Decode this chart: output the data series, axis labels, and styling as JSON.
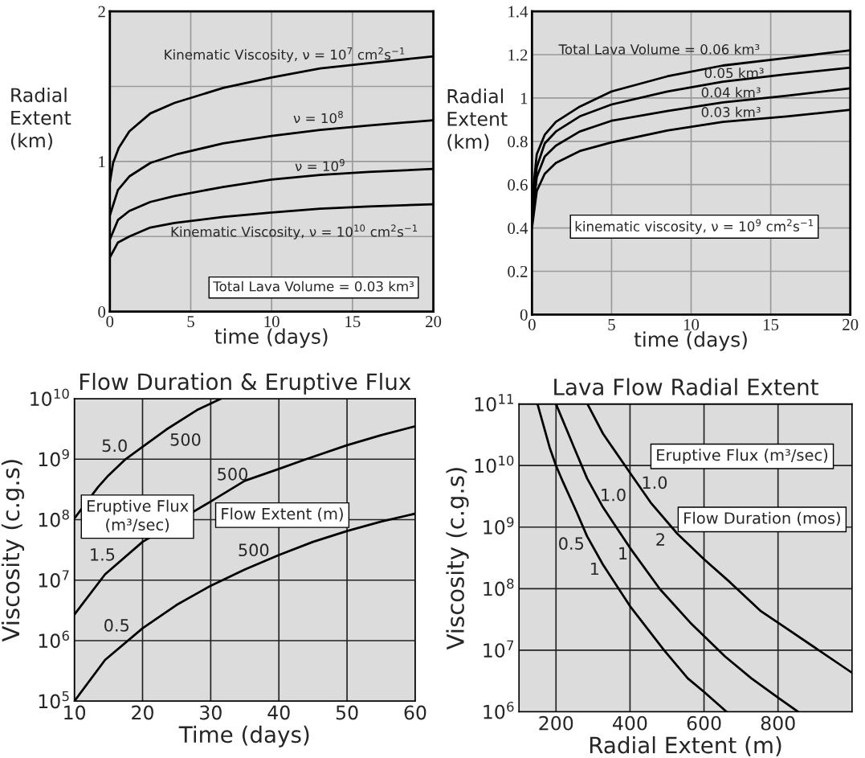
{
  "chart_data": [
    {
      "type": "line",
      "xlabel": "time (days)",
      "ylabel": "Radial\nExtent\n(km)",
      "xlim": [
        0,
        20
      ],
      "ylim": [
        0,
        2
      ],
      "xticks": [
        0,
        5,
        10,
        15,
        20
      ],
      "yticks": [
        0,
        {
          "value": 0.5,
          "label": null
        },
        1,
        {
          "value": 1.5,
          "label": null
        },
        2
      ],
      "grid": true,
      "series": [
        {
          "color": "#000000",
          "x": [
            0,
            0.2,
            0.55,
            1.2,
            2.5,
            4,
            7,
            10,
            13,
            16,
            20
          ],
          "values": [
            0.86,
            0.99,
            1.09,
            1.2,
            1.32,
            1.39,
            1.49,
            1.56,
            1.62,
            1.655,
            1.7
          ]
        },
        {
          "color": "#000000",
          "x": [
            0,
            0.5,
            1.2,
            2.5,
            4.2,
            7,
            10,
            13,
            16,
            20
          ],
          "values": [
            0.64,
            0.81,
            0.9,
            0.99,
            1.05,
            1.12,
            1.17,
            1.21,
            1.24,
            1.275
          ]
        },
        {
          "color": "#000000",
          "x": [
            0,
            0.5,
            1.2,
            2.5,
            4,
            7,
            10,
            13,
            16,
            20
          ],
          "values": [
            0.48,
            0.61,
            0.67,
            0.73,
            0.77,
            0.83,
            0.88,
            0.91,
            0.93,
            0.95
          ]
        },
        {
          "color": "#000000",
          "x": [
            0,
            0.5,
            1.2,
            2.5,
            4,
            7,
            10,
            13,
            16,
            20
          ],
          "values": [
            0.36,
            0.46,
            0.5,
            0.56,
            0.59,
            0.63,
            0.66,
            0.685,
            0.7,
            0.715
          ]
        }
      ],
      "annotations": [
        "Kinematic Viscosity, ν = 10$^{7}$ cm$^{2}$s$^{−1}$",
        "ν = 10$^{8}$",
        "ν = 10$^{9}$",
        "Kinematic Viscosity, ν = 10$^{10}$ cm$^{2}$s$^{−1}$",
        "Total Lava Volume = 0.03 km³"
      ]
    },
    {
      "type": "line",
      "xlabel": "time (days)",
      "ylabel": "Radial\nExtent\n(km)",
      "xlim": [
        0,
        20
      ],
      "ylim": [
        0,
        1.4
      ],
      "xticks": [
        0,
        5,
        10,
        15,
        20
      ],
      "yticks": [
        0,
        0.2,
        0.4,
        0.6,
        0.8,
        1,
        1.2,
        1.4
      ],
      "grid": true,
      "series": [
        {
          "color": "#000000",
          "x": [
            0,
            0.3,
            0.8,
            1.5,
            3,
            5,
            8.5,
            12,
            16,
            20
          ],
          "values": [
            0.52,
            0.74,
            0.83,
            0.89,
            0.96,
            1.03,
            1.1,
            1.15,
            1.185,
            1.22
          ]
        },
        {
          "color": "#000000",
          "x": [
            0,
            0.3,
            0.8,
            1.5,
            3,
            5,
            8.5,
            12,
            16,
            20
          ],
          "values": [
            0.48,
            0.68,
            0.79,
            0.845,
            0.915,
            0.97,
            1.03,
            1.075,
            1.11,
            1.14
          ]
        },
        {
          "color": "#000000",
          "x": [
            0,
            0.3,
            0.8,
            1.5,
            3,
            5,
            8.5,
            12,
            16,
            20
          ],
          "values": [
            0.44,
            0.635,
            0.73,
            0.78,
            0.845,
            0.895,
            0.94,
            0.98,
            1.01,
            1.045
          ]
        },
        {
          "color": "#000000",
          "x": [
            0,
            0.3,
            0.8,
            1.5,
            3,
            5,
            8.5,
            12,
            16,
            20
          ],
          "values": [
            0.4,
            0.57,
            0.65,
            0.7,
            0.755,
            0.795,
            0.85,
            0.89,
            0.915,
            0.945
          ]
        }
      ],
      "annotations": [
        "Total Lava Volume = 0.06 km³",
        "0.05 km³",
        "0.04 km³",
        "0.03 km³",
        "kinematic viscosity, ν = 10$^{9}$ cm$^{2}$s$^{−1}$"
      ]
    },
    {
      "type": "line",
      "title": "Flow Duration & Eruptive Flux",
      "xlabel": "Time (days)",
      "ylabel": "Viscosity (c.g.s)",
      "log": true,
      "xlim": [
        10,
        60
      ],
      "ylim": [
        100000,
        10000000000
      ],
      "xticks": [
        10,
        20,
        30,
        40,
        50,
        60
      ],
      "yticks": [
        {
          "value": 100000,
          "label": "10$^{5}$"
        },
        {
          "value": 1000000,
          "label": "10$^{6}$"
        },
        {
          "value": 10000000,
          "label": "10$^{7}$"
        },
        {
          "value": 100000000,
          "label": "10$^{8}$"
        },
        {
          "value": 1000000000,
          "label": "10$^{9}$"
        },
        {
          "value": 10000000000,
          "label": "10$^{10}$"
        }
      ],
      "grid": true,
      "series": [
        {
          "color": "#000000",
          "x": [
            10,
            13.5,
            15,
            17.5,
            20,
            23.5,
            28,
            31.5
          ],
          "values": [
            105000000,
            350000000,
            540000000,
            1000000000,
            1600000000,
            3100000000,
            6500000000,
            10000000000
          ]
        },
        {
          "color": "#000000",
          "x": [
            10,
            14.5,
            20,
            30,
            35,
            40,
            44,
            50,
            55,
            60
          ],
          "values": [
            2700000,
            12500000,
            43000000,
            200000000,
            440000000,
            690000000,
            1000000000,
            1700000000,
            2500000000,
            3500000000
          ]
        },
        {
          "color": "#000000",
          "x": [
            10,
            14.5,
            20,
            25,
            30,
            35,
            40,
            45,
            50,
            55,
            60
          ],
          "values": [
            100000,
            480000,
            1600000,
            3900000,
            8100000,
            15000000,
            26000000,
            43000000,
            65000000,
            93000000,
            126000000
          ]
        }
      ],
      "annotations": [
        "5.0",
        "500",
        "500",
        "500",
        "1.5",
        "0.5",
        "Eruptive Flux\n(m³/sec)",
        "Flow Extent (m)"
      ]
    },
    {
      "type": "line",
      "title": "Lava Flow Radial Extent",
      "xlabel": "Radial Extent (m)",
      "ylabel": "Viscosity (c.g.s)",
      "log": true,
      "xlim": [
        100,
        1000
      ],
      "ylim": [
        1000000,
        100000000000
      ],
      "xticks": [
        200,
        400,
        600,
        800
      ],
      "yticks": [
        {
          "value": 1000000,
          "label": "10$^{6}$"
        },
        {
          "value": 10000000,
          "label": "10$^{7}$"
        },
        {
          "value": 100000000,
          "label": "10$^{8}$"
        },
        {
          "value": 1000000000,
          "label": "10$^{9}$"
        },
        {
          "value": 10000000000,
          "label": "10$^{10}$"
        },
        {
          "value": 100000000000,
          "label": "10$^{11}$"
        }
      ],
      "grid": true,
      "series": [
        {
          "color": "#000000",
          "x": [
            150,
            183,
            200,
            219,
            255,
            284,
            327,
            400,
            492,
            556,
            600,
            661
          ],
          "values": [
            100000000000,
            19500000000,
            10000000000,
            5400000000,
            1800000000,
            710000000,
            245000000,
            52000000,
            10000000,
            3500000,
            2100000,
            1000000
          ]
        },
        {
          "color": "#000000",
          "x": [
            200,
            255,
            284,
            327,
            400,
            481,
            563,
            657,
            728,
            800,
            854
          ],
          "values": [
            100000000000,
            16000000000,
            6200000000,
            2100000000,
            460000000,
            98000000,
            28000000,
            7900000,
            3500000,
            1700000,
            1000000
          ]
        },
        {
          "color": "#000000",
          "x": [
            285,
            327,
            400,
            456,
            528,
            600,
            671,
            754,
            800,
            900,
            1000
          ],
          "values": [
            100000000000,
            33000000000,
            7600000000,
            2500000000,
            780000000,
            300000000,
            126000000,
            43000000,
            28000000,
            11000000,
            4300000
          ]
        }
      ],
      "annotations": [
        "1.0",
        "1.0",
        "0.5",
        "1",
        "1",
        "2",
        "Eruptive Flux (m³/sec)",
        "Flow Duration (mos)"
      ]
    }
  ]
}
